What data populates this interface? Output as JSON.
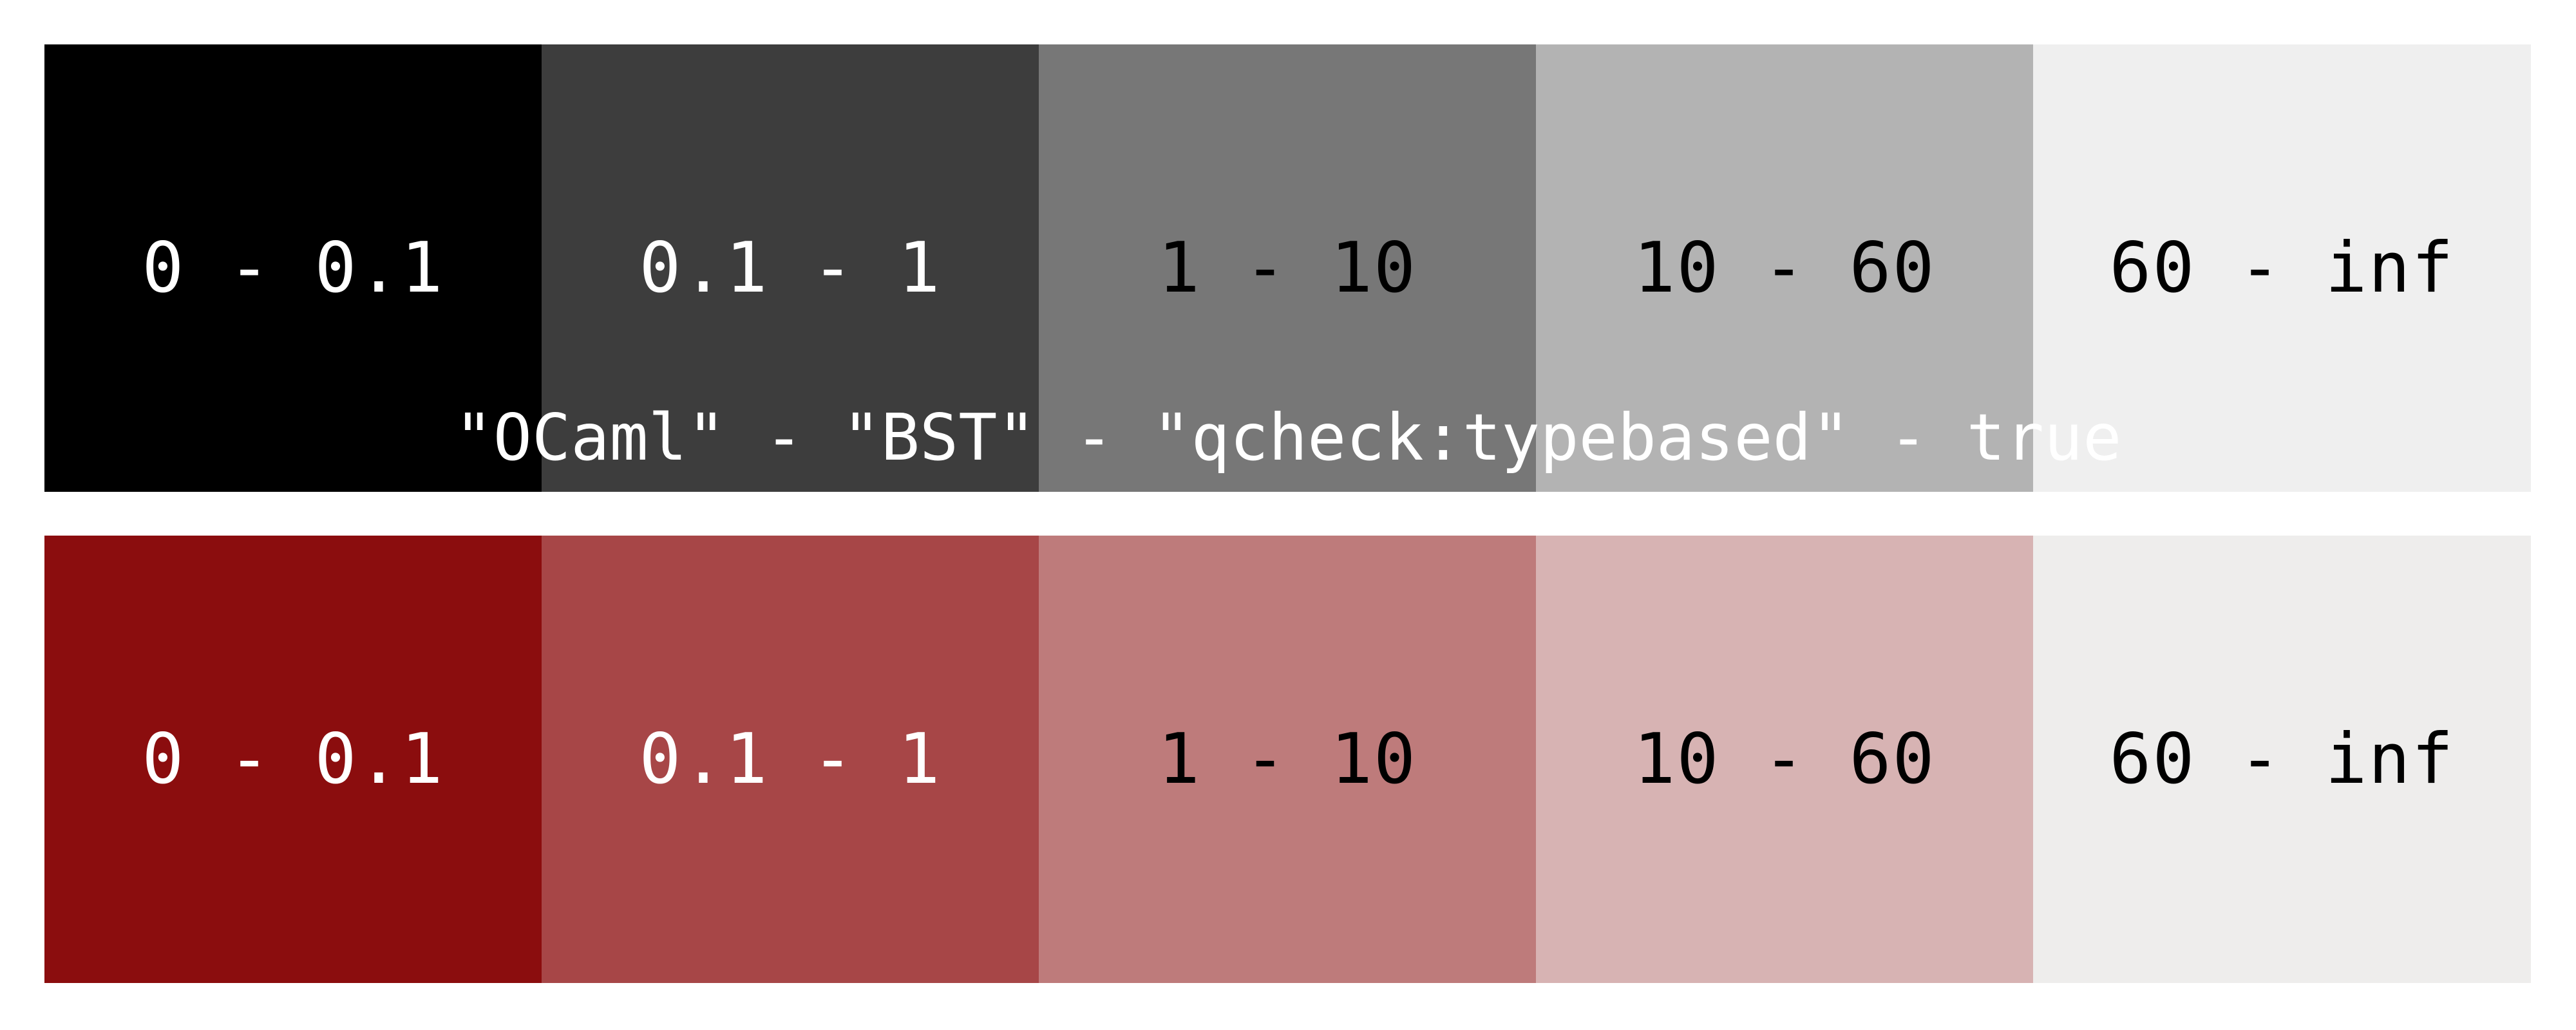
{
  "caption": "\"OCaml\" - \"BST\" - \"qcheck:typebased\" - true",
  "gray_row": [
    {
      "label": "0 - 0.1",
      "bg": "#000000",
      "fg": "#ffffff"
    },
    {
      "label": "0.1 - 1",
      "bg": "#3d3d3d",
      "fg": "#ffffff"
    },
    {
      "label": "1 - 10",
      "bg": "#777777",
      "fg": "#000000"
    },
    {
      "label": "10 - 60",
      "bg": "#b3b3b3",
      "fg": "#000000"
    },
    {
      "label": "60 - inf",
      "bg": "#efefef",
      "fg": "#000000"
    }
  ],
  "red_row": [
    {
      "label": "0 - 0.1",
      "bg": "#8b0d0e",
      "fg": "#ffffff"
    },
    {
      "label": "0.1 - 1",
      "bg": "#a74647",
      "fg": "#ffffff"
    },
    {
      "label": "1 - 10",
      "bg": "#be7b7b",
      "fg": "#000000"
    },
    {
      "label": "10 - 60",
      "bg": "#d7b3b3",
      "fg": "#000000"
    },
    {
      "label": "60 - inf",
      "bg": "#eeedec",
      "fg": "#000000"
    }
  ]
}
